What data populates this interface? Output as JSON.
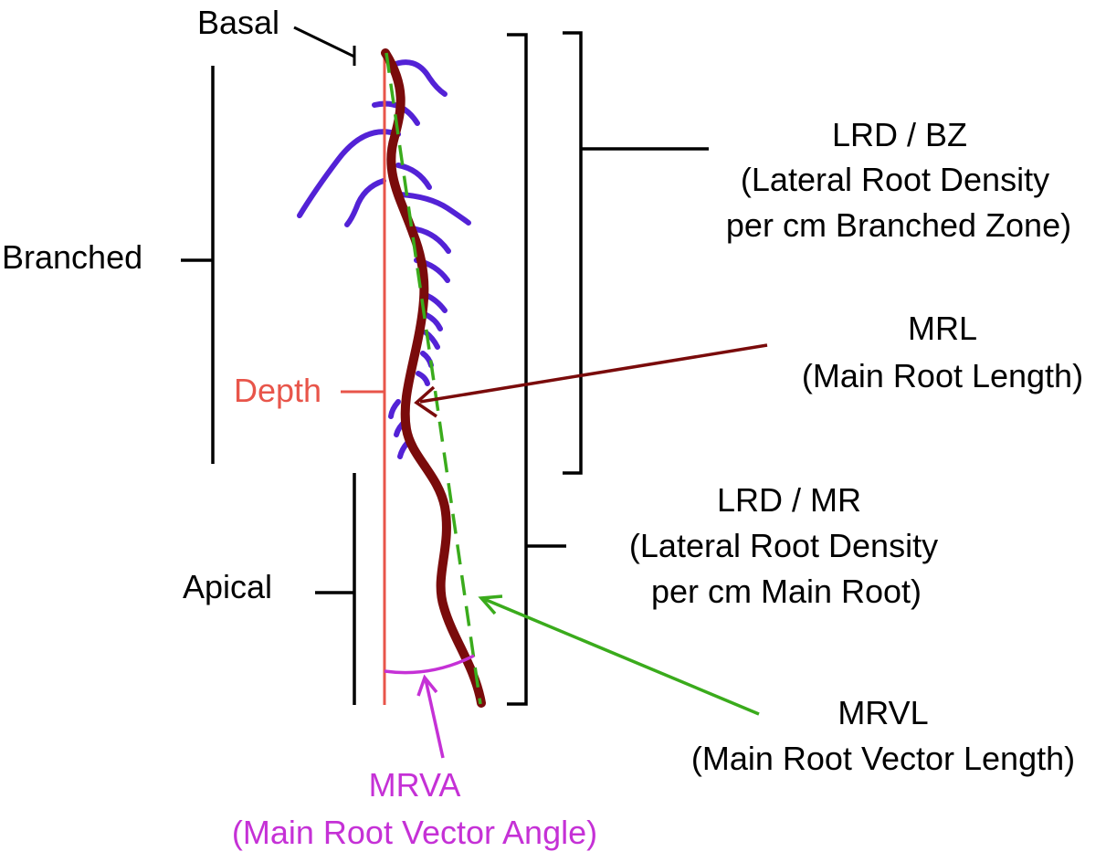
{
  "labels": {
    "basal": "Basal",
    "branched": "Branched",
    "depth": "Depth",
    "apical": "Apical",
    "lrd_bz_title": "LRD / BZ",
    "lrd_bz_line1": "(Lateral Root Density",
    "lrd_bz_line2": "per cm Branched Zone)",
    "mrl_title": "MRL",
    "mrl_line1": "(Main Root Length)",
    "lrd_mr_title": "LRD / MR",
    "lrd_mr_line1": "(Lateral Root Density",
    "lrd_mr_line2": "per cm Main Root)",
    "mrvl_title": "MRVL",
    "mrvl_line1": "(Main Root Vector Length)",
    "mrva_title": "MRVA",
    "mrva_line1": "(Main Root Vector Angle)"
  },
  "colors": {
    "black": "#000000",
    "main_root": "#7a0b0b",
    "lateral_roots": "#5322d6",
    "depth": "#e8554a",
    "vector": "#3aab1c",
    "angle": "#c531d6",
    "mrl_arrow": "#7a0b0b"
  }
}
